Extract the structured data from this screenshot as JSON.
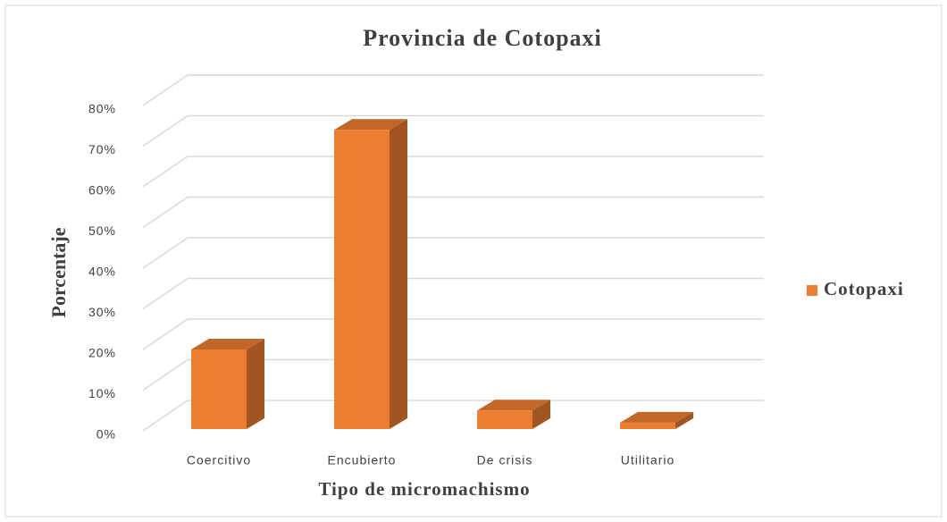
{
  "chart_data": {
    "type": "bar3d",
    "title": "Provincia de Cotopaxi",
    "x_label": "Tipo de micromachismo",
    "y_label": "Porcentaje",
    "categories": [
      "Coercitivo",
      "Encubierto",
      "De crisis",
      "Utilitario"
    ],
    "series": [
      {
        "name": "Cotopaxi",
        "color": "#ed7d31",
        "values": [
          20,
          74,
          5,
          2
        ]
      }
    ],
    "ylim": [
      0,
      80
    ],
    "yticks": [
      {
        "value": 0,
        "label": "0%"
      },
      {
        "value": 10,
        "label": "10%"
      },
      {
        "value": 20,
        "label": "20%"
      },
      {
        "value": 30,
        "label": "30%"
      },
      {
        "value": 40,
        "label": "40%"
      },
      {
        "value": 50,
        "label": "50%"
      },
      {
        "value": 60,
        "label": "60%"
      },
      {
        "value": 70,
        "label": "70%"
      },
      {
        "value": 80,
        "label": "80%"
      }
    ],
    "grid": true,
    "legend": "right"
  }
}
